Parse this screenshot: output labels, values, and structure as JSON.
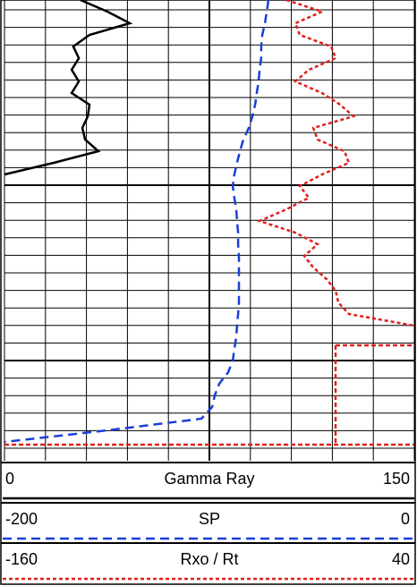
{
  "chart_data": {
    "type": "line",
    "series": [
      {
        "name": "Gamma Ray",
        "color": "#000000",
        "dash": "solid",
        "xlim": [
          0,
          150
        ],
        "values": [
          27.8,
          37.7,
          45.9,
          31.1,
          25.2,
          27.2,
          24.6,
          27.2,
          24.6,
          31.1,
          30.5,
          28.5,
          29.5,
          34.4,
          18,
          0,
          null,
          null,
          null,
          null,
          null,
          null,
          null,
          null,
          null,
          null,
          null,
          null,
          null,
          null,
          null,
          null,
          null,
          null,
          null,
          null,
          null,
          null,
          null,
          null
        ]
      },
      {
        "name": "SP",
        "color": "#1a3fd6",
        "dash": "dashed",
        "xlim": [
          -200,
          0
        ],
        "values": [
          -71.2,
          -72,
          -72.9,
          -74.2,
          -74.7,
          -74.7,
          -75.5,
          -76,
          -76.9,
          -77.7,
          -79,
          -80.8,
          -83.4,
          -85.1,
          -86.5,
          -87.8,
          -88.6,
          -87.8,
          -86.9,
          -86.5,
          -86,
          -86,
          -85.6,
          -85.6,
          -85.6,
          -85.6,
          -85.6,
          -86,
          -86.5,
          -86.9,
          -87.8,
          -88.6,
          -90.8,
          -95.2,
          -97.4,
          -98.7,
          -103.9,
          -149.8,
          -200,
          null
        ]
      },
      {
        "name": "Rxo / Rt",
        "color": "#e0201c",
        "dash": "dotted",
        "xlim": [
          -160,
          40
        ],
        "values": [
          -22.4,
          -5,
          -18.1,
          -15.9,
          -0.6,
          1.6,
          -11.5,
          -18.1,
          -5,
          3.8,
          10.3,
          -9.3,
          -7.2,
          5.9,
          8.1,
          -5,
          -15.9,
          -11.5,
          -22.4,
          -35.5,
          -18.1,
          -7.2,
          -13.7,
          -9.3,
          -2.8,
          1.6,
          2.9,
          8.1,
          40,
          null,
          null,
          null,
          null,
          null,
          null,
          null,
          null,
          null,
          null,
          null
        ]
      }
    ]
  }
}
